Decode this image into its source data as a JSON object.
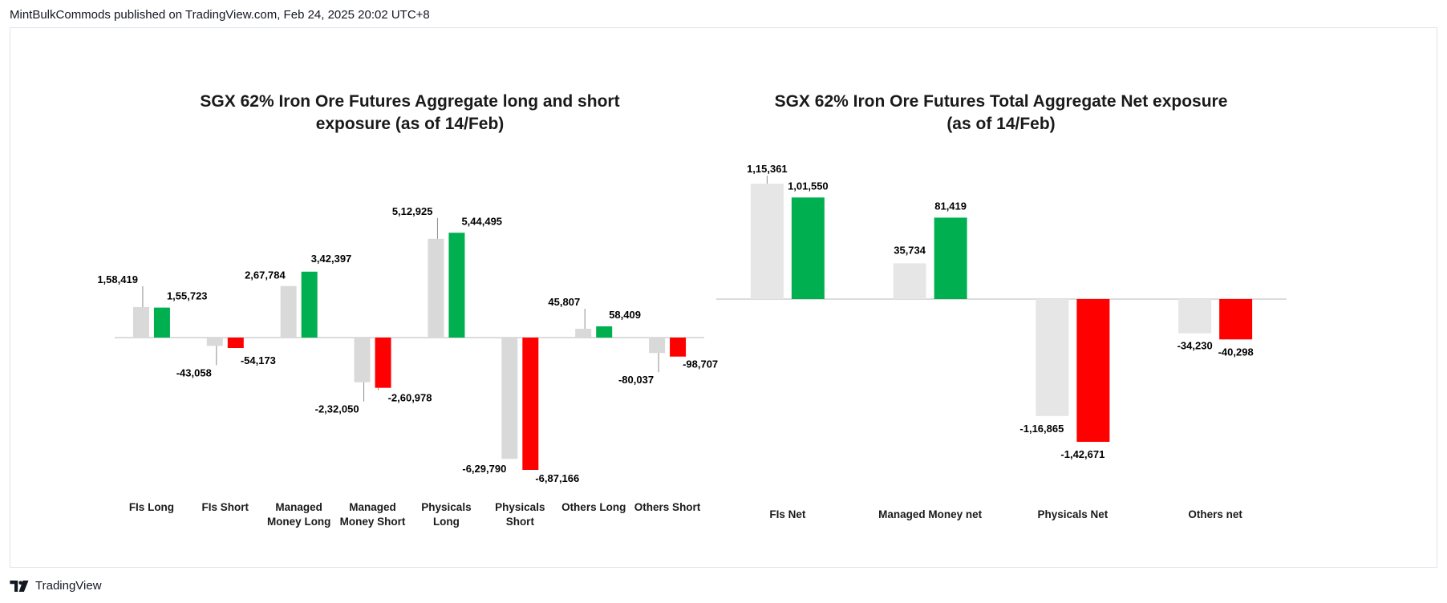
{
  "header": {
    "text": "MintBulkCommods published on TradingView.com, Feb 24, 2025 20:02 UTC+8"
  },
  "footer": {
    "brand": "TradingView",
    "icon": "tradingview-logo-icon"
  },
  "colors": {
    "prior": "#d9d9d9",
    "current_pos": "#00b050",
    "current_neg": "#ff0000",
    "axis": "#d0d0d0"
  },
  "chart_data": [
    {
      "type": "bar",
      "title": "SGX 62% Iron Ore Futures Aggregate long and short exposure (as of 14/Feb)",
      "title_lines": [
        "SGX 62% Iron Ore Futures Aggregate long and short",
        "exposure (as of 14/Feb)"
      ],
      "categories": [
        [
          "FIs Long"
        ],
        [
          "FIs Short"
        ],
        [
          "Managed",
          "Money Long"
        ],
        [
          "Managed",
          "Money Short"
        ],
        [
          "Physicals",
          "Long"
        ],
        [
          "Physicals",
          "Short"
        ],
        [
          "Others Long"
        ],
        [
          "Others Short"
        ]
      ],
      "series": [
        {
          "values": [
            158419,
            -43058,
            267784,
            -232050,
            512925,
            -629790,
            45807,
            -80037
          ],
          "labels": [
            "1,58,419",
            "-43,058",
            "2,67,784",
            "-2,32,050",
            "5,12,925",
            "-6,29,790",
            "45,807",
            "-80,037"
          ]
        },
        {
          "values": [
            155723,
            -54173,
            342397,
            -260978,
            544495,
            -687166,
            58409,
            -98707
          ],
          "labels": [
            "1,55,723",
            "-54,173",
            "3,42,397",
            "-2,60,978",
            "5,44,495",
            "-6,87,166",
            "58,409",
            "-98,707"
          ]
        }
      ],
      "ylim": [
        -760000,
        760000
      ],
      "grid": false,
      "legend": "none"
    },
    {
      "type": "bar",
      "title": "SGX 62% Iron Ore Futures Total Aggregate Net exposure (as of 14/Feb)",
      "title_lines": [
        "SGX 62% Iron Ore Futures Total Aggregate Net exposure",
        "(as of 14/Feb)"
      ],
      "categories": [
        [
          "FIs Net"
        ],
        [
          "Managed Money net"
        ],
        [
          "Physicals Net"
        ],
        [
          "Others net"
        ]
      ],
      "series": [
        {
          "values": [
            115361,
            35734,
            -116865,
            -34230
          ],
          "labels": [
            "1,15,361",
            "35,734",
            "-1,16,865",
            "-34,230"
          ]
        },
        {
          "values": [
            101550,
            81419,
            -142671,
            -40298
          ],
          "labels": [
            "1,01,550",
            "81,419",
            "-1,42,671",
            "-40,298"
          ]
        }
      ],
      "ylim": [
        -150000,
        150000
      ],
      "grid": false,
      "legend": "none"
    }
  ]
}
